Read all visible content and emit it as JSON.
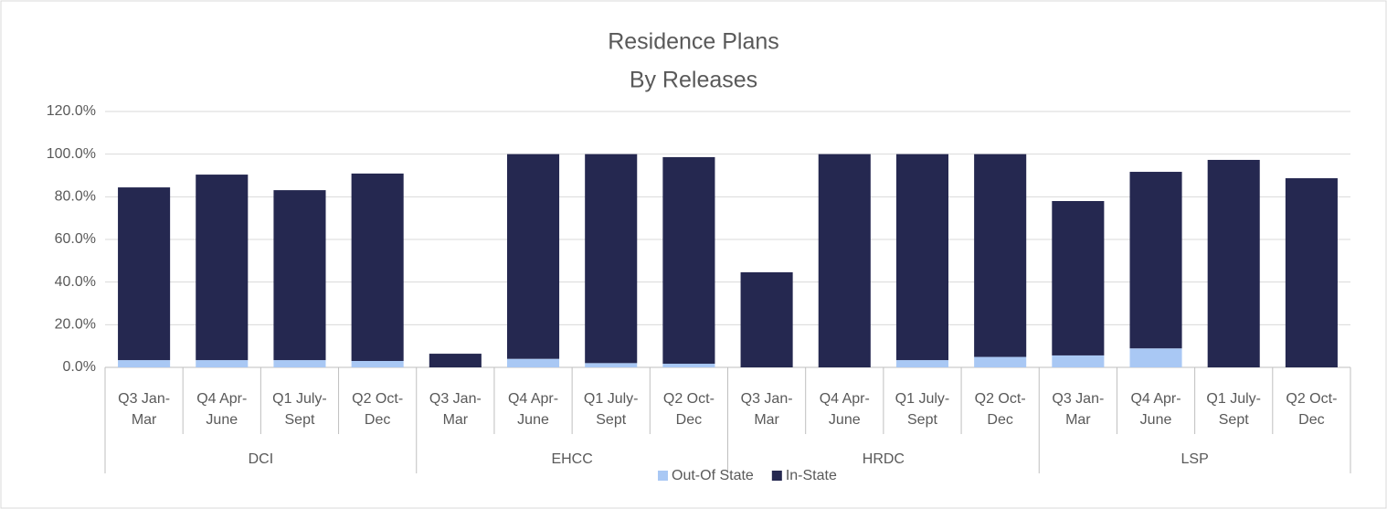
{
  "chart_data": {
    "type": "stacked_bar",
    "title": "Residence Plans",
    "subtitle": "By Releases",
    "groups": [
      "DCI",
      "EHCC",
      "HRDC",
      "LSP"
    ],
    "categories": [
      [
        "Q3 Jan-",
        "Mar"
      ],
      [
        "Q4 Apr-",
        "June"
      ],
      [
        "Q1 July-",
        "Sept"
      ],
      [
        "Q2 Oct-",
        "Dec"
      ],
      [
        "Q3 Jan-",
        "Mar"
      ],
      [
        "Q4 Apr-",
        "June"
      ],
      [
        "Q1 July-",
        "Sept"
      ],
      [
        "Q2 Oct-",
        "Dec"
      ],
      [
        "Q3 Jan-",
        "Mar"
      ],
      [
        "Q4 Apr-",
        "June"
      ],
      [
        "Q1 July-",
        "Sept"
      ],
      [
        "Q2 Oct-",
        "Dec"
      ],
      [
        "Q3 Jan-",
        "Mar"
      ],
      [
        "Q4 Apr-",
        "June"
      ],
      [
        "Q1 July-",
        "Sept"
      ],
      [
        "Q2 Oct-",
        "Dec"
      ]
    ],
    "series": [
      {
        "name": "Out-Of State",
        "color": "#a9c8f4",
        "values": [
          3.4,
          3.4,
          3.4,
          3.0,
          0,
          4.0,
          2.0,
          1.7,
          0,
          0,
          3.4,
          4.9,
          5.6,
          8.9,
          0,
          0
        ]
      },
      {
        "name": "In-State",
        "color": "#252850",
        "values": [
          81.0,
          87.0,
          79.7,
          87.9,
          6.4,
          96.0,
          98.0,
          96.9,
          44.6,
          100.0,
          96.6,
          95.1,
          72.4,
          82.8,
          97.3,
          88.7
        ]
      }
    ],
    "ylim": [
      0,
      120
    ],
    "yticks": [
      {
        "value": 0,
        "label": "0.0%"
      },
      {
        "value": 20,
        "label": "20.0%"
      },
      {
        "value": 40,
        "label": "40.0%"
      },
      {
        "value": 60,
        "label": "60.0%"
      },
      {
        "value": 80,
        "label": "80.0%"
      },
      {
        "value": 100,
        "label": "100.0%"
      },
      {
        "value": 120,
        "label": "120.0%"
      }
    ],
    "grid": true,
    "legend": "bottom"
  }
}
